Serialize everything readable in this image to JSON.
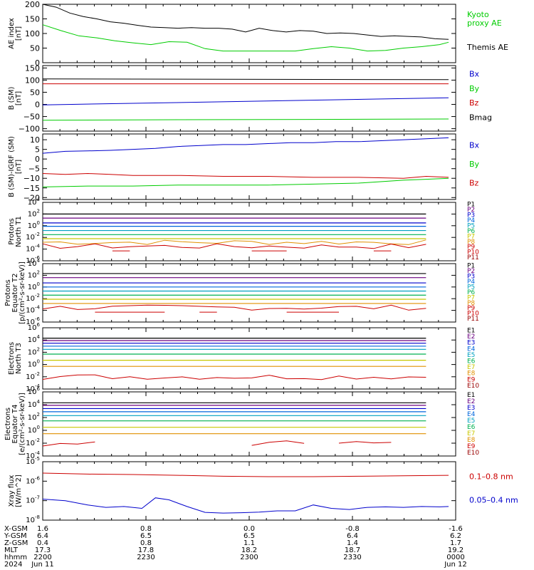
{
  "chart_data": [
    {
      "type": "line",
      "ylabel": [
        "AE index",
        "[nT]"
      ],
      "ylim": [
        0,
        200
      ],
      "yticks": [
        0,
        50,
        100,
        150,
        200
      ],
      "grid": false,
      "series": [
        {
          "name": "Kyoto proxy AE",
          "color": "#00cc00",
          "x": [
            0,
            4,
            8,
            12,
            16,
            20,
            24,
            28,
            32,
            36,
            40,
            44,
            48,
            52,
            56,
            60,
            64,
            68,
            72,
            76,
            80,
            84,
            88,
            90
          ],
          "y": [
            130,
            110,
            92,
            85,
            75,
            68,
            62,
            72,
            70,
            48,
            40,
            40,
            40,
            40,
            40,
            48,
            55,
            50,
            40,
            42,
            50,
            55,
            62,
            70
          ]
        },
        {
          "name": "Themis AE",
          "color": "#000000",
          "x": [
            0,
            3,
            6,
            9,
            12,
            15,
            18,
            21,
            24,
            27,
            30,
            33,
            36,
            39,
            42,
            45,
            48,
            51,
            54,
            57,
            60,
            63,
            66,
            69,
            72,
            75,
            78,
            81,
            84,
            87,
            90
          ],
          "y": [
            200,
            190,
            170,
            158,
            150,
            140,
            135,
            128,
            122,
            120,
            118,
            120,
            118,
            118,
            115,
            105,
            118,
            110,
            105,
            110,
            108,
            100,
            102,
            100,
            95,
            90,
            92,
            90,
            88,
            82,
            80
          ]
        }
      ],
      "legend": [
        {
          "text": "Kyoto",
          "color": "#00cc00"
        },
        {
          "text": "proxy AE",
          "color": "#00cc00"
        },
        {
          "text": "Themis AE",
          "color": "#000000"
        }
      ]
    },
    {
      "type": "line",
      "ylabel": [
        "B (SM)",
        "[nT]"
      ],
      "ylim": [
        -110,
        160
      ],
      "yticks": [
        -100,
        -50,
        0,
        50,
        100,
        150
      ],
      "grid": false,
      "series": [
        {
          "name": "Bx",
          "color": "#0000cc",
          "x": [
            0,
            90
          ],
          "y": [
            -2,
            27
          ]
        },
        {
          "name": "By",
          "color": "#00cc00",
          "x": [
            0,
            30,
            60,
            90
          ],
          "y": [
            -65,
            -63,
            -62,
            -60
          ]
        },
        {
          "name": "Bz",
          "color": "#cc0000",
          "x": [
            0,
            90
          ],
          "y": [
            85,
            85
          ]
        },
        {
          "name": "Bmag",
          "color": "#000000",
          "x": [
            0,
            90
          ],
          "y": [
            105,
            102
          ]
        }
      ],
      "legend": [
        {
          "text": "Bx",
          "color": "#0000cc"
        },
        {
          "text": "By",
          "color": "#00cc00"
        },
        {
          "text": "Bz",
          "color": "#cc0000"
        },
        {
          "text": "Bmag",
          "color": "#000000"
        }
      ]
    },
    {
      "type": "line",
      "ylabel": [
        "B (SM)-IGRF (SM)",
        "[nT]"
      ],
      "ylim": [
        -21,
        13
      ],
      "yticks": [
        -20,
        -15,
        -10,
        -5,
        0,
        5,
        10
      ],
      "grid": false,
      "series": [
        {
          "name": "Bx",
          "color": "#0000cc",
          "x": [
            0,
            5,
            10,
            15,
            20,
            25,
            30,
            35,
            40,
            45,
            50,
            55,
            60,
            65,
            70,
            75,
            80,
            85,
            90
          ],
          "y": [
            3,
            4,
            4.2,
            4.5,
            5,
            5.5,
            6.5,
            7,
            7.5,
            7.5,
            8,
            8.5,
            8.5,
            9,
            9,
            9.5,
            10,
            10.5,
            11
          ]
        },
        {
          "name": "By",
          "color": "#00cc00",
          "x": [
            0,
            10,
            20,
            30,
            40,
            50,
            60,
            70,
            80,
            85,
            90
          ],
          "y": [
            -14.5,
            -14,
            -14,
            -13.5,
            -13.5,
            -13.5,
            -13,
            -12.5,
            -11,
            -10.5,
            -10
          ]
        },
        {
          "name": "Bz",
          "color": "#cc0000",
          "x": [
            0,
            5,
            10,
            15,
            20,
            30,
            40,
            50,
            60,
            70,
            80,
            85,
            90
          ],
          "y": [
            -7.5,
            -8,
            -7.5,
            -8,
            -8.5,
            -8.5,
            -9,
            -9,
            -9.5,
            -9.5,
            -10,
            -9,
            -9.5
          ]
        }
      ],
      "legend": [
        {
          "text": "Bx",
          "color": "#0000cc"
        },
        {
          "text": "By",
          "color": "#00cc00"
        },
        {
          "text": "Bz",
          "color": "#cc0000"
        }
      ]
    },
    {
      "type": "line",
      "ylabel": [
        "Protons",
        "North T1"
      ],
      "yscale": "log",
      "ylim_exp": [
        -6,
        4
      ],
      "yticks_exp": [
        -6,
        -4,
        -2,
        0,
        2,
        4
      ],
      "grid": false,
      "xend": 85,
      "series": [
        {
          "name": "P1",
          "color": "#000000",
          "y": 100
        },
        {
          "name": "P2",
          "color": "#6a0080",
          "y": 20
        },
        {
          "name": "P3",
          "color": "#0000cc",
          "y": 3
        },
        {
          "name": "P4",
          "color": "#0066dd",
          "y": 0.8
        },
        {
          "name": "P5",
          "color": "#00a0c0",
          "y": 0.15
        },
        {
          "name": "P6",
          "color": "#00b050",
          "y": 0.03
        },
        {
          "name": "P7",
          "color": "#c8c800",
          "y": 0.006
        },
        {
          "name": "P8",
          "color": "#e09000",
          "y": 0.0015,
          "noisy": true
        },
        {
          "name": "P9",
          "color": "#cc0000",
          "y": 0.0003,
          "noisy": true
        },
        {
          "name": "P10",
          "color": "#cc0000",
          "y": 5e-05,
          "broken": true
        }
      ],
      "legend": [
        {
          "text": "P1",
          "color": "#000000"
        },
        {
          "text": "P2",
          "color": "#6a0080"
        },
        {
          "text": "P3",
          "color": "#0000cc"
        },
        {
          "text": "P4",
          "color": "#0066dd"
        },
        {
          "text": "P5",
          "color": "#00a0c0"
        },
        {
          "text": "P6",
          "color": "#00b050"
        },
        {
          "text": "P7",
          "color": "#c8c800"
        },
        {
          "text": "P8",
          "color": "#e09000"
        },
        {
          "text": "P9",
          "color": "#cc0000"
        },
        {
          "text": "P10",
          "color": "#cc0000"
        },
        {
          "text": "P11",
          "color": "#990000"
        }
      ]
    },
    {
      "type": "line",
      "ylabel": [
        "Protons",
        "Equator T2",
        "[p/(cm²-s-sr-keV)]"
      ],
      "yscale": "log",
      "ylim_exp": [
        -6,
        4
      ],
      "yticks_exp": [
        -6,
        -4,
        -2,
        0,
        2,
        4
      ],
      "grid": false,
      "xend": 85,
      "series": [
        {
          "name": "P1",
          "color": "#000000",
          "y": 200
        },
        {
          "name": "P2",
          "color": "#6a0080",
          "y": 40
        },
        {
          "name": "P3",
          "color": "#0000cc",
          "y": 5
        },
        {
          "name": "P4",
          "color": "#0066dd",
          "y": 1
        },
        {
          "name": "P5",
          "color": "#00a0c0",
          "y": 0.2
        },
        {
          "name": "P6",
          "color": "#00b050",
          "y": 0.04
        },
        {
          "name": "P7",
          "color": "#c8c800",
          "y": 0.008
        },
        {
          "name": "P8",
          "color": "#e09000",
          "y": 0.0015
        },
        {
          "name": "P9",
          "color": "#cc0000",
          "y": 0.0003,
          "noisy": true
        },
        {
          "name": "P10",
          "color": "#cc0000",
          "y": 5e-05,
          "broken": true
        }
      ],
      "legend": [
        {
          "text": "P1",
          "color": "#000000"
        },
        {
          "text": "P2",
          "color": "#6a0080"
        },
        {
          "text": "P3",
          "color": "#0000cc"
        },
        {
          "text": "P4",
          "color": "#0066dd"
        },
        {
          "text": "P5",
          "color": "#00a0c0"
        },
        {
          "text": "P6",
          "color": "#00b050"
        },
        {
          "text": "P7",
          "color": "#c8c800"
        },
        {
          "text": "P8",
          "color": "#e09000"
        },
        {
          "text": "P9",
          "color": "#cc0000"
        },
        {
          "text": "P10",
          "color": "#cc0000"
        },
        {
          "text": "P11",
          "color": "#990000"
        }
      ]
    },
    {
      "type": "line",
      "ylabel": [
        "Electrons",
        "North T3"
      ],
      "yscale": "log",
      "ylim_exp": [
        -4,
        6
      ],
      "yticks_exp": [
        -4,
        -2,
        0,
        2,
        4,
        6
      ],
      "grid": false,
      "xend": 85,
      "series": [
        {
          "name": "E1",
          "color": "#000000",
          "y": 20000
        },
        {
          "name": "E2",
          "color": "#6a0080",
          "y": 8000
        },
        {
          "name": "E3",
          "color": "#0000cc",
          "y": 3000
        },
        {
          "name": "E4",
          "color": "#0066dd",
          "y": 1000
        },
        {
          "name": "E5",
          "color": "#00a0c0",
          "y": 300
        },
        {
          "name": "E6",
          "color": "#00b050",
          "y": 50
        },
        {
          "name": "E7",
          "color": "#c8c800",
          "y": 5
        },
        {
          "name": "E8",
          "color": "#e09000",
          "y": 0.5
        },
        {
          "name": "E9",
          "color": "#cc0000",
          "y": 0.01,
          "noisy": true
        }
      ],
      "legend": [
        {
          "text": "E1",
          "color": "#000000"
        },
        {
          "text": "E2",
          "color": "#6a0080"
        },
        {
          "text": "E3",
          "color": "#0000cc"
        },
        {
          "text": "E4",
          "color": "#0066dd"
        },
        {
          "text": "E5",
          "color": "#00a0c0"
        },
        {
          "text": "E6",
          "color": "#00b050"
        },
        {
          "text": "E7",
          "color": "#c8c800"
        },
        {
          "text": "E8",
          "color": "#e09000"
        },
        {
          "text": "E9",
          "color": "#cc0000"
        },
        {
          "text": "E10",
          "color": "#990000"
        }
      ]
    },
    {
      "type": "line",
      "ylabel": [
        "Electrons",
        "Equator T4",
        "[e/(cm²-s-sr-keV)]"
      ],
      "yscale": "log",
      "ylim_exp": [
        -4,
        6
      ],
      "yticks_exp": [
        -4,
        -2,
        0,
        2,
        4,
        6
      ],
      "grid": false,
      "xend": 85,
      "series": [
        {
          "name": "E1",
          "color": "#000000",
          "y": 20000
        },
        {
          "name": "E2",
          "color": "#6a0080",
          "y": 8000
        },
        {
          "name": "E3",
          "color": "#0000cc",
          "y": 2500
        },
        {
          "name": "E4",
          "color": "#0066dd",
          "y": 800
        },
        {
          "name": "E5",
          "color": "#00a0c0",
          "y": 200
        },
        {
          "name": "E6",
          "color": "#00b050",
          "y": 30
        },
        {
          "name": "E7",
          "color": "#c8c800",
          "y": 3
        },
        {
          "name": "E8",
          "color": "#e09000",
          "y": 0.3
        },
        {
          "name": "E9",
          "color": "#cc0000",
          "y": 0.01,
          "noisy": true,
          "broken": true
        }
      ],
      "legend": [
        {
          "text": "E1",
          "color": "#000000"
        },
        {
          "text": "E2",
          "color": "#6a0080"
        },
        {
          "text": "E3",
          "color": "#0000cc"
        },
        {
          "text": "E4",
          "color": "#0066dd"
        },
        {
          "text": "E5",
          "color": "#00a0c0"
        },
        {
          "text": "E6",
          "color": "#00b050"
        },
        {
          "text": "E7",
          "color": "#c8c800"
        },
        {
          "text": "E8",
          "color": "#e09000"
        },
        {
          "text": "E9",
          "color": "#cc0000"
        },
        {
          "text": "E10",
          "color": "#990000"
        }
      ]
    },
    {
      "type": "line",
      "ylabel": [
        "Xray flux",
        "[W/m^2]"
      ],
      "yscale": "log",
      "ylim_exp": [
        -8,
        -5
      ],
      "yticks_exp": [
        -8,
        -7,
        -6,
        -5
      ],
      "grid": false,
      "series": [
        {
          "name": "0.1-0.8 nm",
          "color": "#cc0000",
          "x": [
            0,
            10,
            20,
            30,
            40,
            50,
            60,
            70,
            80,
            90
          ],
          "y": [
            2.6e-06,
            2.3e-06,
            2.2e-06,
            2e-06,
            1.8e-06,
            1.7e-06,
            1.7e-06,
            1.8e-06,
            1.9e-06,
            2e-06
          ]
        },
        {
          "name": "0.05-0.4 nm",
          "color": "#0000cc",
          "x": [
            0,
            5,
            10,
            14,
            18,
            22,
            25,
            28,
            32,
            36,
            40,
            44,
            48,
            52,
            56,
            60,
            64,
            68,
            72,
            76,
            80,
            84,
            88,
            90
          ],
          "y": [
            1.2e-07,
            1e-07,
            6e-08,
            4.5e-08,
            5e-08,
            4e-08,
            1.4e-07,
            1.1e-07,
            5e-08,
            2.5e-08,
            2.3e-08,
            2.4e-08,
            2.6e-08,
            3e-08,
            3e-08,
            6e-08,
            4e-08,
            3.5e-08,
            4.5e-08,
            4.8e-08,
            4.5e-08,
            5e-08,
            4.8e-08,
            5e-08
          ]
        }
      ],
      "legend": [
        {
          "text": "0.1–0.8 nm",
          "color": "#cc0000"
        },
        {
          "text": "0.05–0.4 nm",
          "color": "#0000cc"
        }
      ]
    }
  ],
  "x_axis": {
    "range": [
      0,
      90
    ],
    "ticks": [
      0,
      30,
      60,
      90,
      120
    ],
    "minor_step": 5,
    "rows": [
      {
        "label": "X-GSM",
        "values": [
          "1.6",
          "0.8",
          "0.0",
          "-0.8",
          "-1.6"
        ]
      },
      {
        "label": "Y-GSM",
        "values": [
          "6.4",
          "6.5",
          "6.5",
          "6.4",
          "6.2"
        ]
      },
      {
        "label": "Z-GSM",
        "values": [
          "0.4",
          "0.8",
          "1.1",
          "1.4",
          "1.7"
        ]
      },
      {
        "label": "MLT",
        "values": [
          "17.3",
          "17.8",
          "18.2",
          "18.7",
          "19.2"
        ]
      },
      {
        "label": "hhmm",
        "values": [
          "2200",
          "2230",
          "2300",
          "2330",
          "0000"
        ]
      },
      {
        "label": "2024",
        "values": [
          "Jun 11",
          "",
          "",
          "",
          "Jun 12"
        ]
      }
    ]
  }
}
